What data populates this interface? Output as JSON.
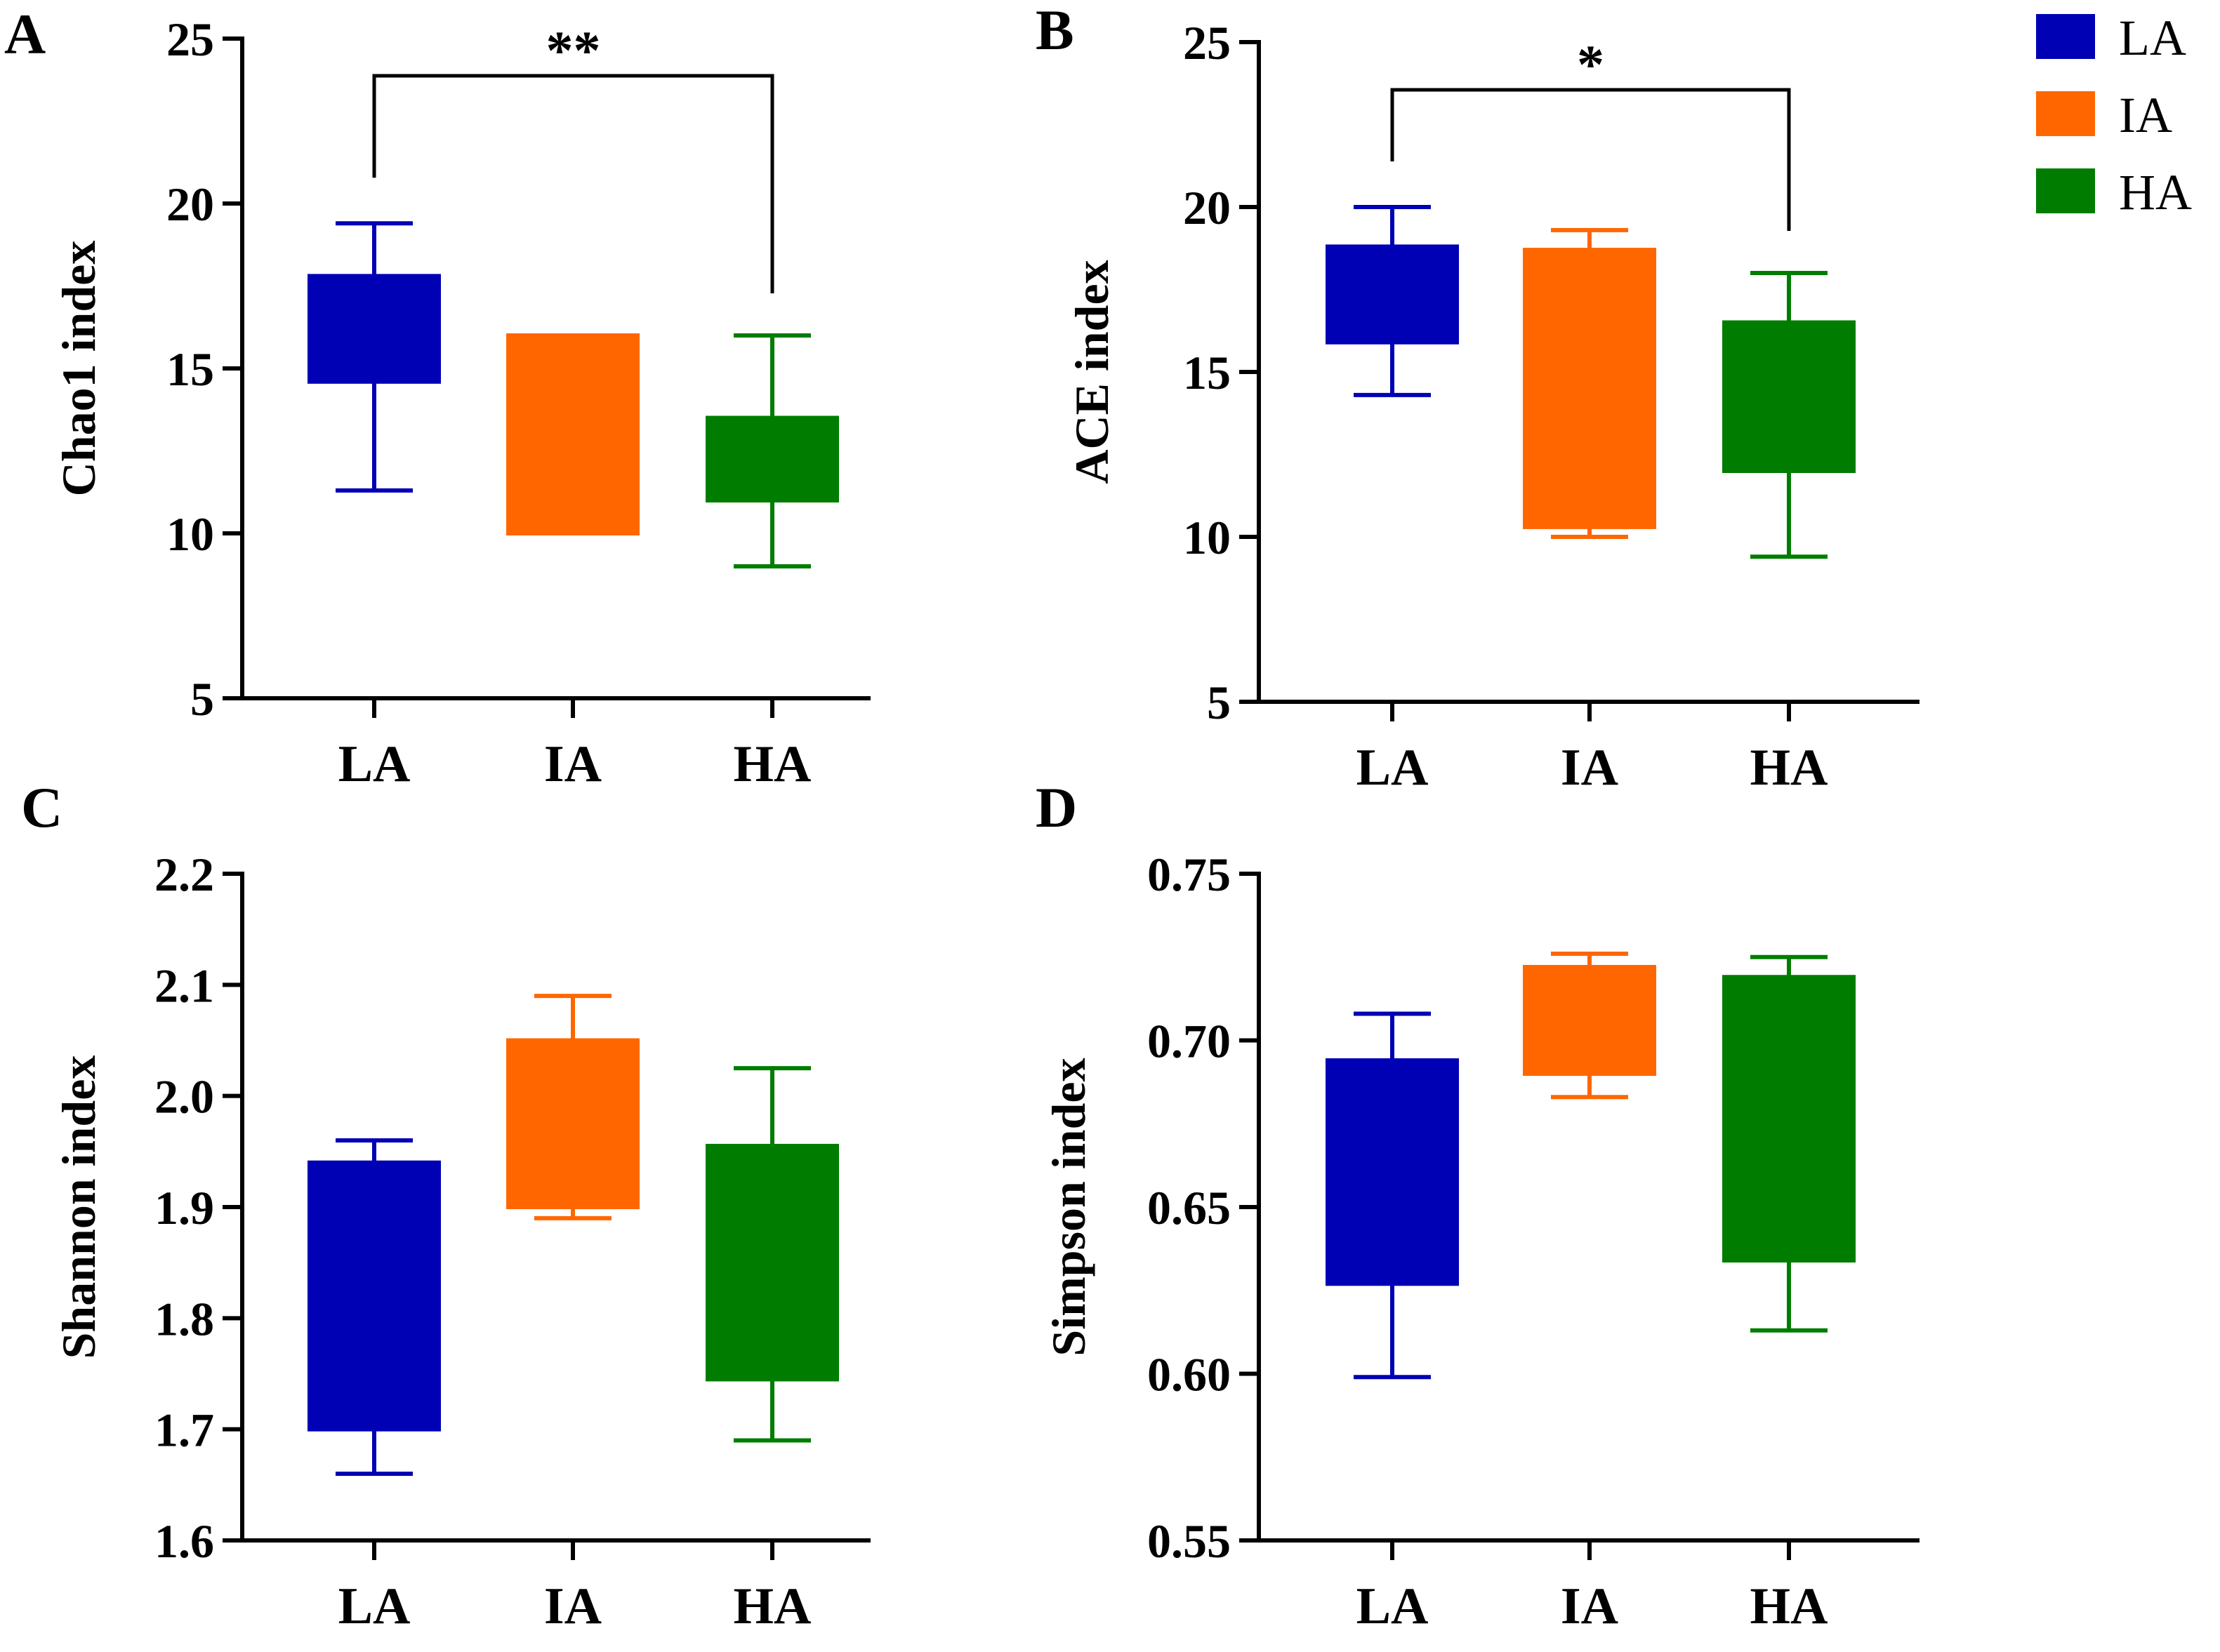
{
  "colors": {
    "LA": "#0000B4",
    "IA": "#FF6600",
    "HA": "#007D00"
  },
  "legend": [
    {
      "key": "LA",
      "label": "LA"
    },
    {
      "key": "IA",
      "label": "IA"
    },
    {
      "key": "HA",
      "label": "HA"
    }
  ],
  "chart_data": [
    {
      "type": "box",
      "panel": "A",
      "ylabel": "Chao1 index",
      "ylim": [
        5,
        25
      ],
      "yticks": [
        5,
        10,
        15,
        20,
        25
      ],
      "ytick_labels": [
        "5",
        "10",
        "15",
        "20",
        "25"
      ],
      "categories": [
        "LA",
        "IA",
        "HA"
      ],
      "boxes": [
        {
          "name": "LA",
          "min": 11.3,
          "q1": 14.6,
          "q3": 17.8,
          "max": 19.4
        },
        {
          "name": "IA",
          "min": 10.0,
          "q1": 10.0,
          "q3": 16.0,
          "max": 16.0
        },
        {
          "name": "HA",
          "min": 9.0,
          "q1": 11.0,
          "q3": 13.5,
          "max": 16.0
        }
      ],
      "significance": {
        "from": "LA",
        "to": "HA",
        "label": "**"
      }
    },
    {
      "type": "box",
      "panel": "B",
      "ylabel": "ACE index",
      "ylim": [
        5,
        25
      ],
      "yticks": [
        5,
        10,
        15,
        20,
        25
      ],
      "ytick_labels": [
        "5",
        "10",
        "15",
        "20",
        "25"
      ],
      "categories": [
        "LA",
        "IA",
        "HA"
      ],
      "boxes": [
        {
          "name": "LA",
          "min": 14.3,
          "q1": 15.9,
          "q3": 18.8,
          "max": 20.0
        },
        {
          "name": "IA",
          "min": 10.0,
          "q1": 10.3,
          "q3": 18.7,
          "max": 19.3
        },
        {
          "name": "HA",
          "min": 9.4,
          "q1": 12.0,
          "q3": 16.5,
          "max": 18.0
        }
      ],
      "significance": {
        "from": "LA",
        "to": "HA",
        "label": "*"
      }
    },
    {
      "type": "box",
      "panel": "C",
      "ylabel": "Shannon index",
      "ylim": [
        1.6,
        2.2
      ],
      "yticks": [
        1.6,
        1.7,
        1.8,
        1.9,
        2.0,
        2.1,
        2.2
      ],
      "ytick_labels": [
        "1.6",
        "1.7",
        "1.8",
        "1.9",
        "2.0",
        "2.1",
        "2.2"
      ],
      "categories": [
        "LA",
        "IA",
        "HA"
      ],
      "boxes": [
        {
          "name": "LA",
          "min": 1.66,
          "q1": 1.7,
          "q3": 1.94,
          "max": 1.96
        },
        {
          "name": "IA",
          "min": 1.89,
          "q1": 1.9,
          "q3": 2.05,
          "max": 2.09
        },
        {
          "name": "HA",
          "min": 1.69,
          "q1": 1.745,
          "q3": 1.955,
          "max": 2.025
        }
      ]
    },
    {
      "type": "box",
      "panel": "D",
      "ylabel": "Simpson index",
      "ylim": [
        0.55,
        0.75
      ],
      "yticks": [
        0.55,
        0.6,
        0.65,
        0.7,
        0.75
      ],
      "ytick_labels": [
        "0.55",
        "0.60",
        "0.65",
        "0.70",
        "0.75"
      ],
      "categories": [
        "LA",
        "IA",
        "HA"
      ],
      "boxes": [
        {
          "name": "LA",
          "min": 0.599,
          "q1": 0.627,
          "q3": 0.694,
          "max": 0.708
        },
        {
          "name": "IA",
          "min": 0.683,
          "q1": 0.69,
          "q3": 0.722,
          "max": 0.726
        },
        {
          "name": "HA",
          "min": 0.613,
          "q1": 0.634,
          "q3": 0.719,
          "max": 0.725
        }
      ]
    }
  ]
}
